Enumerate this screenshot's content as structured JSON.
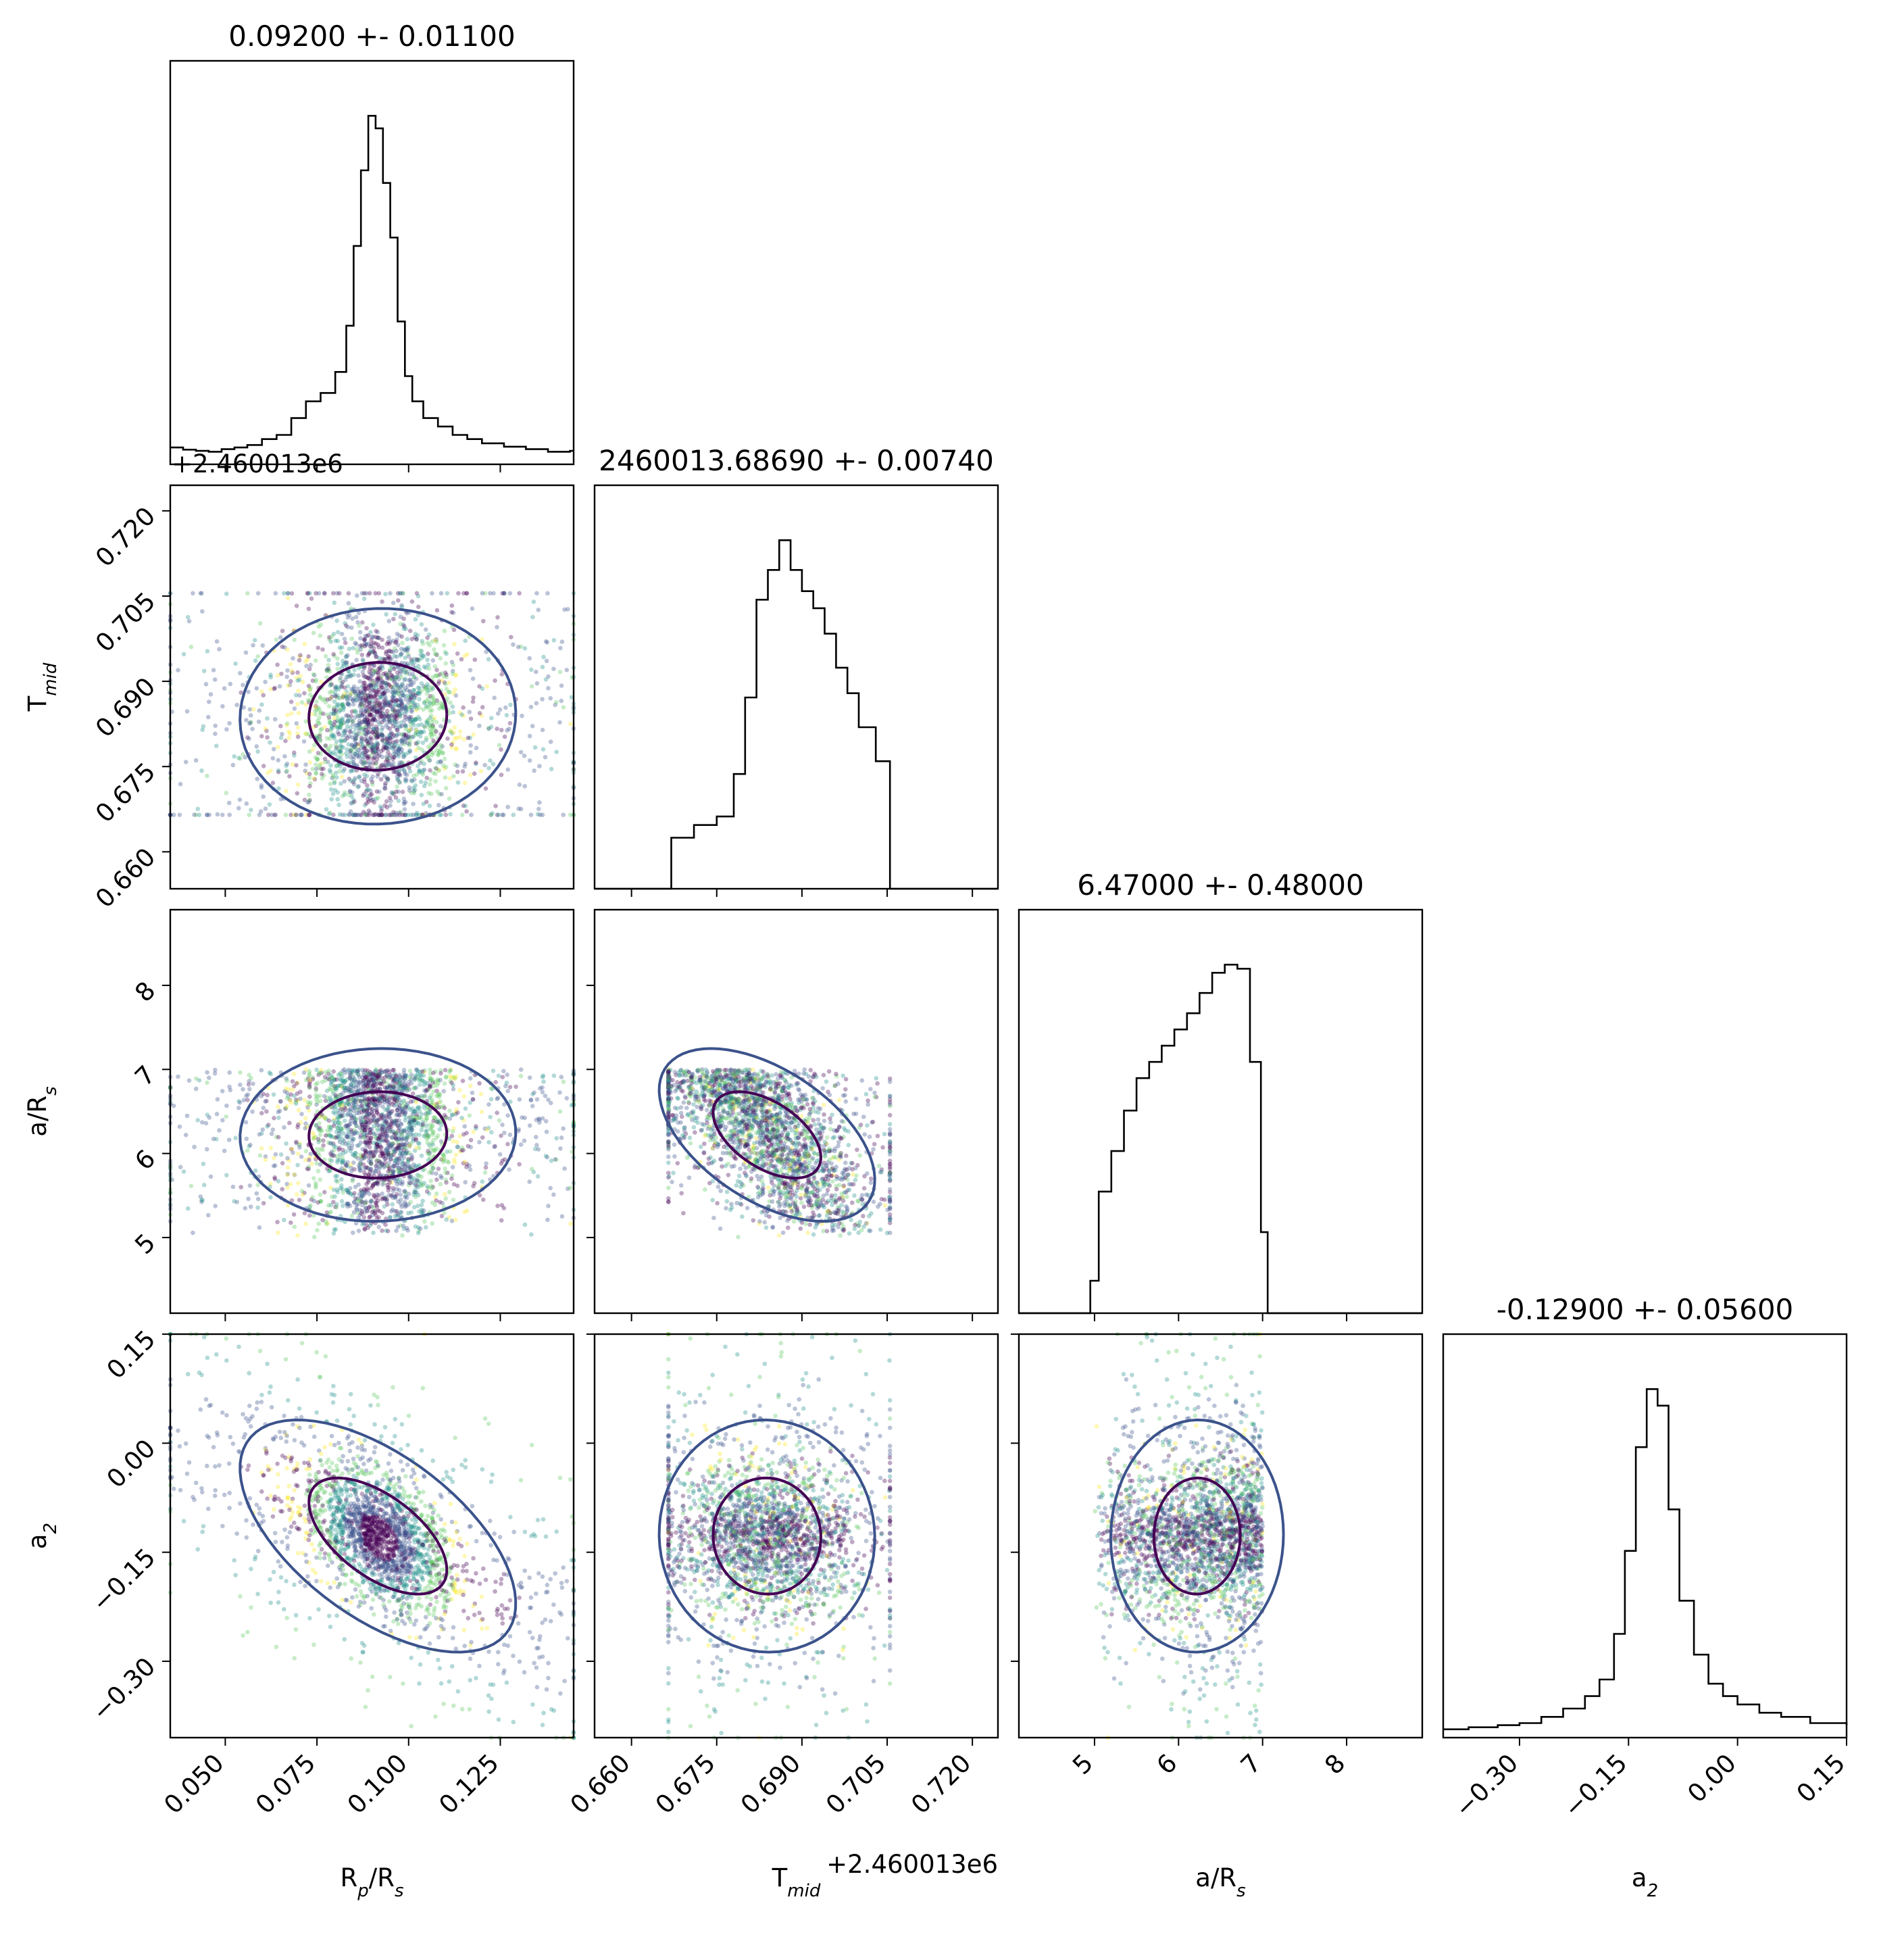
{
  "chart_data": {
    "type": "scatter",
    "subtype": "corner-plot",
    "parameters": [
      {
        "key": "rp",
        "label_main": "R",
        "label_sub": "p",
        "label_rest": "/R",
        "label_sub2": "s",
        "title": "0.09200 +- 0.01100",
        "range": [
          0.035,
          0.145
        ],
        "ticks": [
          0.05,
          0.075,
          0.1,
          0.125
        ],
        "tick_labels": [
          "0.050",
          "0.075",
          "0.100",
          "0.125"
        ],
        "median": 0.092,
        "sigma": 0.011
      },
      {
        "key": "tmid",
        "label_main": "T",
        "label_sub": "mid",
        "label_rest": "",
        "label_sub2": "",
        "title": "2460013.68690 +- 0.00740",
        "range": [
          0.6535,
          0.7245
        ],
        "ticks": [
          0.66,
          0.675,
          0.69,
          0.705,
          0.72
        ],
        "tick_labels": [
          "0.660",
          "0.675",
          "0.690",
          "0.705",
          "0.720"
        ],
        "offset_label": "+2.460013e6",
        "median": 0.6869,
        "sigma": 0.0074
      },
      {
        "key": "ars",
        "label_main": "a/R",
        "label_sub": "s",
        "label_rest": "",
        "label_sub2": "",
        "title": "6.47000 +- 0.48000",
        "range": [
          4.1,
          8.9
        ],
        "ticks": [
          5,
          6,
          7,
          8
        ],
        "tick_labels": [
          "5",
          "6",
          "7",
          "8"
        ],
        "median": 6.47,
        "sigma": 0.48
      },
      {
        "key": "a2",
        "label_main": "a",
        "label_sub": "2",
        "label_rest": "",
        "label_sub2": "",
        "title": "-0.12900 +- 0.05600",
        "range": [
          -0.405,
          0.15
        ],
        "ticks": [
          -0.3,
          -0.15,
          0.0,
          0.15
        ],
        "tick_labels": [
          "−0.30",
          "−0.15",
          "0.00",
          "0.15"
        ],
        "median": -0.129,
        "sigma": 0.056
      }
    ],
    "sample_bounds": {
      "tmid": [
        0.6665,
        0.7055
      ],
      "ars": [
        5.0,
        7.0
      ]
    },
    "histograms": {
      "rp": [
        [
          0.035,
          4
        ],
        [
          0.0385,
          3.5
        ],
        [
          0.042,
          3.2
        ],
        [
          0.0455,
          3
        ],
        [
          0.049,
          3.6
        ],
        [
          0.0525,
          4
        ],
        [
          0.056,
          4.6
        ],
        [
          0.06,
          6
        ],
        [
          0.064,
          7
        ],
        [
          0.068,
          11
        ],
        [
          0.072,
          15
        ],
        [
          0.076,
          17
        ],
        [
          0.08,
          22
        ],
        [
          0.083,
          33
        ],
        [
          0.085,
          52
        ],
        [
          0.087,
          70
        ],
        [
          0.089,
          83
        ],
        [
          0.091,
          80
        ],
        [
          0.093,
          67
        ],
        [
          0.095,
          54
        ],
        [
          0.097,
          34
        ],
        [
          0.099,
          21
        ],
        [
          0.101,
          15
        ],
        [
          0.104,
          11
        ],
        [
          0.108,
          9
        ],
        [
          0.112,
          7
        ],
        [
          0.116,
          6
        ],
        [
          0.12,
          5
        ],
        [
          0.126,
          4.2
        ],
        [
          0.132,
          3.6
        ],
        [
          0.138,
          3
        ],
        [
          0.144,
          3.2
        ]
      ],
      "tmid": [
        [
          0.6535,
          0
        ],
        [
          0.6655,
          0
        ],
        [
          0.667,
          12
        ],
        [
          0.671,
          15
        ],
        [
          0.675,
          17
        ],
        [
          0.678,
          27
        ],
        [
          0.68,
          45
        ],
        [
          0.682,
          68
        ],
        [
          0.684,
          75
        ],
        [
          0.686,
          82
        ],
        [
          0.688,
          75
        ],
        [
          0.69,
          70
        ],
        [
          0.692,
          66
        ],
        [
          0.694,
          60
        ],
        [
          0.696,
          52
        ],
        [
          0.698,
          46
        ],
        [
          0.7,
          38
        ],
        [
          0.703,
          30
        ],
        [
          0.705,
          30
        ],
        [
          0.7055,
          0
        ],
        [
          0.7245,
          0
        ]
      ],
      "ars": [
        [
          4.1,
          0
        ],
        [
          4.92,
          0
        ],
        [
          4.95,
          8
        ],
        [
          5.05,
          30
        ],
        [
          5.2,
          40
        ],
        [
          5.35,
          50
        ],
        [
          5.5,
          58
        ],
        [
          5.65,
          62
        ],
        [
          5.8,
          66
        ],
        [
          5.95,
          70
        ],
        [
          6.1,
          74
        ],
        [
          6.25,
          79
        ],
        [
          6.4,
          84
        ],
        [
          6.55,
          86
        ],
        [
          6.7,
          85
        ],
        [
          6.85,
          62
        ],
        [
          6.98,
          20
        ],
        [
          7.06,
          0
        ],
        [
          8.9,
          0
        ]
      ],
      "a2": [
        [
          -0.405,
          2
        ],
        [
          -0.37,
          2.5
        ],
        [
          -0.33,
          3
        ],
        [
          -0.3,
          3.5
        ],
        [
          -0.27,
          5
        ],
        [
          -0.24,
          7
        ],
        [
          -0.21,
          10
        ],
        [
          -0.19,
          14
        ],
        [
          -0.17,
          25
        ],
        [
          -0.155,
          45
        ],
        [
          -0.14,
          70
        ],
        [
          -0.125,
          84
        ],
        [
          -0.11,
          80
        ],
        [
          -0.095,
          55
        ],
        [
          -0.08,
          33
        ],
        [
          -0.06,
          20
        ],
        [
          -0.04,
          13
        ],
        [
          -0.02,
          10
        ],
        [
          0.0,
          8
        ],
        [
          0.03,
          6
        ],
        [
          0.06,
          5
        ],
        [
          0.1,
          3.5
        ],
        [
          0.15,
          3
        ]
      ]
    },
    "contour_colors": {
      "inner": "#440154",
      "middle": "#3b528b",
      "outer": "#fde725"
    },
    "grid": false,
    "legend": "none"
  }
}
